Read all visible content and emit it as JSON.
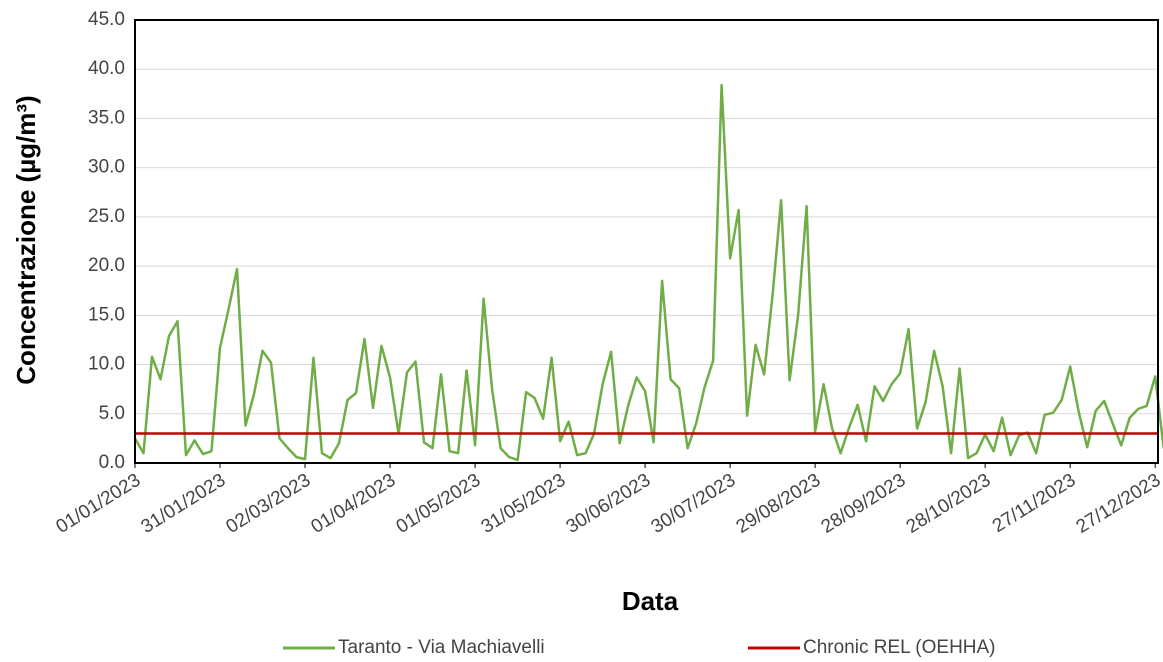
{
  "chart_data": {
    "type": "line",
    "y_label": "Concentrazione (µg/m³)",
    "x_label": "Data",
    "x": [
      "01/01/2023",
      "04/01/2023",
      "07/01/2023",
      "10/01/2023",
      "13/01/2023",
      "16/01/2023",
      "19/01/2023",
      "22/01/2023",
      "25/01/2023",
      "28/01/2023",
      "31/01/2023",
      "03/02/2023",
      "06/02/2023",
      "09/02/2023",
      "12/02/2023",
      "15/02/2023",
      "18/02/2023",
      "21/02/2023",
      "24/02/2023",
      "27/02/2023",
      "02/03/2023",
      "05/03/2023",
      "08/03/2023",
      "11/03/2023",
      "14/03/2023",
      "17/03/2023",
      "20/03/2023",
      "23/03/2023",
      "26/03/2023",
      "29/03/2023",
      "01/04/2023",
      "04/04/2023",
      "07/04/2023",
      "10/04/2023",
      "13/04/2023",
      "16/04/2023",
      "19/04/2023",
      "22/04/2023",
      "25/04/2023",
      "28/04/2023",
      "01/05/2023",
      "04/05/2023",
      "07/05/2023",
      "10/05/2023",
      "13/05/2023",
      "16/05/2023",
      "19/05/2023",
      "22/05/2023",
      "25/05/2023",
      "28/05/2023",
      "31/05/2023",
      "03/06/2023",
      "06/06/2023",
      "09/06/2023",
      "12/06/2023",
      "15/06/2023",
      "18/06/2023",
      "21/06/2023",
      "24/06/2023",
      "27/06/2023",
      "30/06/2023",
      "03/07/2023",
      "06/07/2023",
      "09/07/2023",
      "12/07/2023",
      "15/07/2023",
      "18/07/2023",
      "21/07/2023",
      "24/07/2023",
      "27/07/2023",
      "30/07/2023",
      "02/08/2023",
      "05/08/2023",
      "08/08/2023",
      "11/08/2023",
      "14/08/2023",
      "17/08/2023",
      "20/08/2023",
      "23/08/2023",
      "26/08/2023",
      "29/08/2023",
      "01/09/2023",
      "04/09/2023",
      "07/09/2023",
      "10/09/2023",
      "13/09/2023",
      "16/09/2023",
      "19/09/2023",
      "22/09/2023",
      "25/09/2023",
      "28/09/2023",
      "01/10/2023",
      "04/10/2023",
      "07/10/2023",
      "10/10/2023",
      "13/10/2023",
      "16/10/2023",
      "19/10/2023",
      "22/10/2023",
      "25/10/2023",
      "28/10/2023",
      "31/10/2023",
      "03/11/2023",
      "06/11/2023",
      "09/11/2023",
      "12/11/2023",
      "15/11/2023",
      "18/11/2023",
      "21/11/2023",
      "24/11/2023",
      "27/11/2023",
      "30/11/2023",
      "03/12/2023",
      "06/12/2023",
      "09/12/2023",
      "12/12/2023",
      "15/12/2023",
      "18/12/2023",
      "21/12/2023",
      "24/12/2023",
      "27/12/2023",
      "30/12/2023"
    ],
    "series": [
      {
        "name": "Taranto - Via Machiavelli",
        "color": "#70ad47",
        "values": [
          2.5,
          1.0,
          10.8,
          8.5,
          12.9,
          14.4,
          0.8,
          2.3,
          0.9,
          1.2,
          11.7,
          15.6,
          19.7,
          3.8,
          7.0,
          11.4,
          10.2,
          2.5,
          1.5,
          0.6,
          0.4,
          10.7,
          1.0,
          0.5,
          2.0,
          6.4,
          7.1,
          12.6,
          5.6,
          11.9,
          8.7,
          3.0,
          9.2,
          10.3,
          2.1,
          1.5,
          9.0,
          1.2,
          1.0,
          9.4,
          1.8,
          16.7,
          7.5,
          1.5,
          0.6,
          0.3,
          7.2,
          6.6,
          4.5,
          10.7,
          2.2,
          4.2,
          0.8,
          1.0,
          3.0,
          8.0,
          11.3,
          2.0,
          5.8,
          8.7,
          7.3,
          2.1,
          18.5,
          8.5,
          7.6,
          1.5,
          4.0,
          7.7,
          10.4,
          38.4,
          20.8,
          25.7,
          4.8,
          12.0,
          9.0,
          17.1,
          26.7,
          8.4,
          15.0,
          26.1,
          3.2,
          8.0,
          3.5,
          1.0,
          3.6,
          5.9,
          2.2,
          7.8,
          6.3,
          8.0,
          9.1,
          13.6,
          3.5,
          6.2,
          11.4,
          7.8,
          1.0,
          9.6,
          0.5,
          1.0,
          2.9,
          1.2,
          4.6,
          0.8,
          2.8,
          3.1,
          1.0,
          4.9,
          5.1,
          6.4,
          9.8,
          5.2,
          1.6,
          5.3,
          6.3,
          4.0,
          1.8,
          4.6,
          5.5,
          5.8,
          8.8,
          1.5
        ]
      }
    ],
    "reference_lines": [
      {
        "name": "Chronic REL (OEHHA)",
        "color": "#c00000",
        "value": 3.0
      }
    ],
    "xlim": [
      "01/01/2023",
      "28/12/2023"
    ],
    "xticks": [
      "01/01/2023",
      "31/01/2023",
      "02/03/2023",
      "01/04/2023",
      "01/05/2023",
      "31/05/2023",
      "30/06/2023",
      "30/07/2023",
      "29/08/2023",
      "28/09/2023",
      "28/10/2023",
      "27/11/2023",
      "27/12/2023"
    ],
    "ylim": [
      0,
      45
    ],
    "yticks": [
      {
        "value": 0,
        "label": "0.0"
      },
      {
        "value": 5,
        "label": "5.0"
      },
      {
        "value": 10,
        "label": "10.0"
      },
      {
        "value": 15,
        "label": "15.0"
      },
      {
        "value": 20,
        "label": "20.0"
      },
      {
        "value": 25,
        "label": "25.0"
      },
      {
        "value": 30,
        "label": "30.0"
      },
      {
        "value": 35,
        "label": "35.0"
      },
      {
        "value": 40,
        "label": "40.0"
      },
      {
        "value": 45,
        "label": "45.0"
      }
    ],
    "grid": true
  }
}
